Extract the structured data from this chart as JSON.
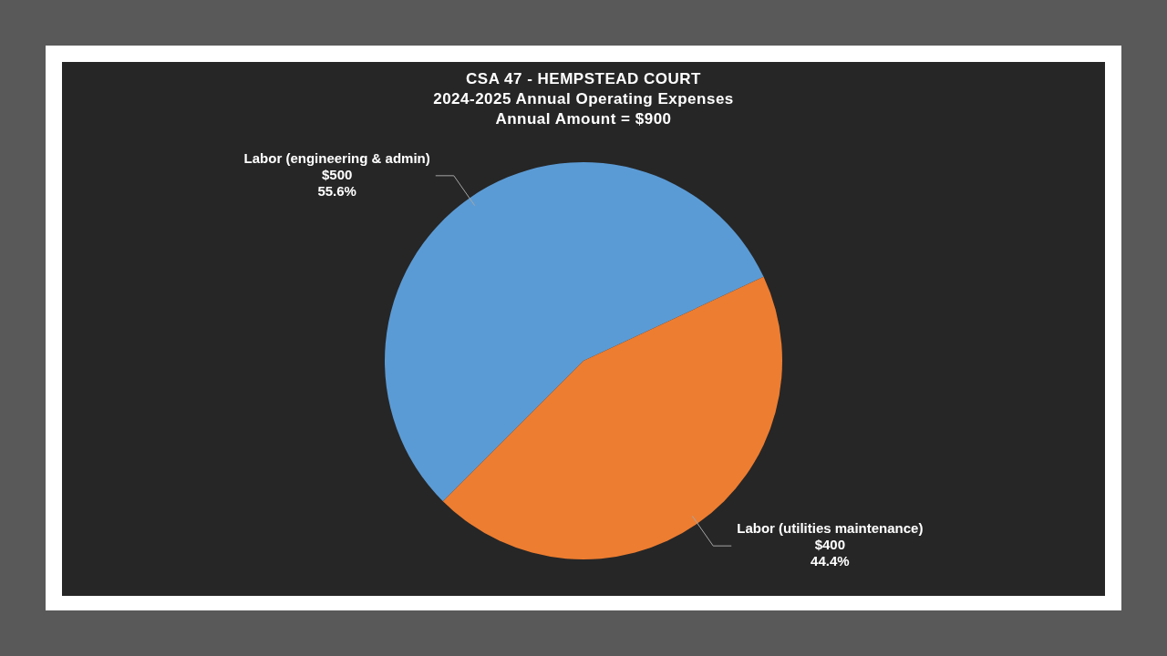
{
  "chart_data": {
    "type": "pie",
    "title": "CSA 47 - HEMPSTEAD COURT",
    "subtitle": "2024-2025 Annual Operating Expenses",
    "annotations": [
      "Annual Amount = $900"
    ],
    "categories": [
      "Labor (engineering & admin)",
      "Labor (utilities maintenance)"
    ],
    "values": [
      500,
      400
    ],
    "colors": [
      "#5b9bd5",
      "#ed7d31"
    ],
    "value_labels": [
      "$500\n55.6%",
      "$400\n44.4%"
    ],
    "legend": false
  }
}
